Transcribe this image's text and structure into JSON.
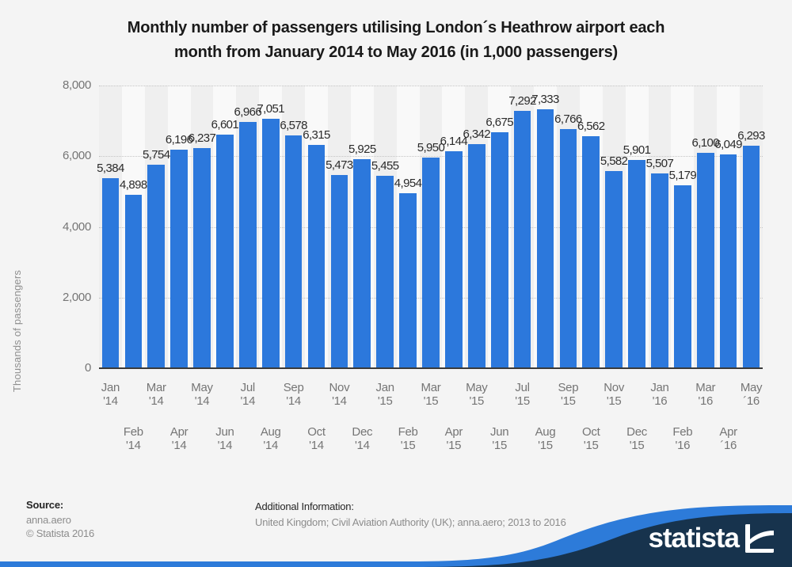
{
  "title": {
    "line1": "Monthly number of passengers utilising London´s Heathrow airport each",
    "line2": "month from January 2014 to May 2016 (in 1,000 passengers)"
  },
  "chart_data": {
    "type": "bar",
    "title": "Monthly number of passengers utilising London´s Heathrow airport each month from January 2014 to May 2016 (in 1,000 passengers)",
    "xlabel": "",
    "ylabel": "Thousands of passengers",
    "ylim": [
      0,
      8000
    ],
    "grid": "dotted horizontal",
    "bar_color": "#2c78dc",
    "stripe_color_even": "#efefef",
    "stripe_color_odd": "#f9f9f9",
    "y_ticks": [
      {
        "label": "0",
        "value": 0
      },
      {
        "label": "2,000",
        "value": 2000
      },
      {
        "label": "4,000",
        "value": 4000
      },
      {
        "label": "6,000",
        "value": 6000
      },
      {
        "label": "8,000",
        "value": 8000
      }
    ],
    "categories": [
      "Jan\n'14",
      "Feb\n'14",
      "Mar\n'14",
      "Apr\n'14",
      "May\n'14",
      "Jun\n'14",
      "Jul\n'14",
      "Aug\n'14",
      "Sep\n'14",
      "Oct\n'14",
      "Nov\n'14",
      "Dec\n'14",
      "Jan\n'15",
      "Feb\n'15",
      "Mar\n'15",
      "Apr\n'15",
      "May\n'15",
      "Jun\n'15",
      "Jul\n'15",
      "Aug\n'15",
      "Sep\n'15",
      "Oct\n'15",
      "Nov\n'15",
      "Dec\n'15",
      "Jan\n'16",
      "Feb\n'16",
      "Mar\n'16",
      "Apr\n´16",
      "May\n´16"
    ],
    "values": [
      5384,
      4898,
      5754,
      6196,
      6237,
      6601,
      6966,
      7051,
      6578,
      6315,
      5473,
      5925,
      5455,
      4954,
      5950,
      6144,
      6342,
      6675,
      7292,
      7333,
      6766,
      6562,
      5582,
      5901,
      5507,
      5179,
      6100,
      6049,
      6293
    ],
    "value_labels": [
      "5,384",
      "4,898",
      "5,754",
      "6,196",
      "6,237",
      "6,601",
      "6,966",
      "7,051",
      "6,578",
      "6,315",
      "5,473",
      "5,925",
      "5,455",
      "4,954",
      "5,950",
      "6,144",
      "6,342",
      "6,675",
      "7,292",
      "7,333",
      "6,766",
      "6,562",
      "5,582",
      "5,901",
      "5,507",
      "5,179",
      "6,100",
      "6,049",
      "6,293"
    ]
  },
  "footer": {
    "source_label": "Source:",
    "source_value": "anna.aero",
    "copyright": "© Statista 2016",
    "additional_label": "Additional Information:",
    "additional_value": "United Kingdom; Civil Aviation Authority (UK); anna.aero; 2013 to 2016"
  },
  "branding": {
    "wordmark": "statista",
    "icon": "statista-swoosh-icon",
    "navy": "#17334d",
    "blue": "#2d7bd9"
  }
}
